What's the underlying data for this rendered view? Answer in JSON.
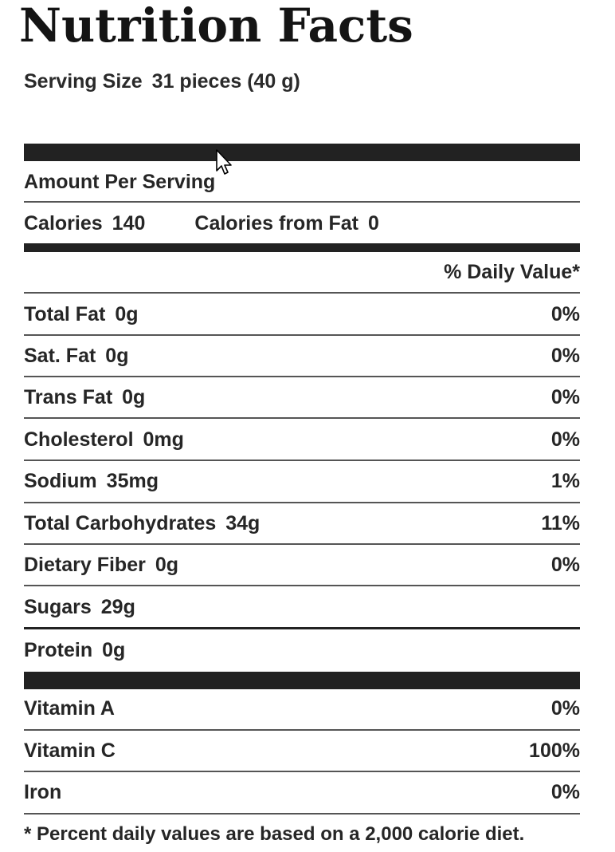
{
  "title": "Nutrition Facts",
  "serving": {
    "label": "Serving Size",
    "value": "31 pieces (40 g)"
  },
  "amount_per_serving": "Amount Per Serving",
  "calories": {
    "label": "Calories",
    "value": "140",
    "fat_label": "Calories from Fat",
    "fat_value": "0"
  },
  "daily_value_header": "% Daily Value*",
  "nutrients": [
    {
      "name": "Total Fat",
      "amount": "0g",
      "dv": "0%"
    },
    {
      "name": "Sat. Fat",
      "amount": "0g",
      "dv": "0%"
    },
    {
      "name": "Trans Fat",
      "amount": "0g",
      "dv": "0%"
    },
    {
      "name": "Cholesterol",
      "amount": "0mg",
      "dv": "0%"
    },
    {
      "name": "Sodium",
      "amount": "35mg",
      "dv": "1%"
    },
    {
      "name": "Total Carbohydrates",
      "amount": "34g",
      "dv": "11%"
    },
    {
      "name": "Dietary Fiber",
      "amount": "0g",
      "dv": "0%"
    },
    {
      "name": "Sugars",
      "amount": "29g",
      "dv": ""
    },
    {
      "name": "Protein",
      "amount": "0g",
      "dv": ""
    }
  ],
  "vitamins": [
    {
      "name": "Vitamin A",
      "dv": "0%"
    },
    {
      "name": "Vitamin C",
      "dv": "100%"
    },
    {
      "name": "Iron",
      "dv": "0%"
    }
  ],
  "footnote": "* Percent daily values are based on a 2,000 calorie diet.",
  "icons": {
    "cursor": "mouse-pointer-icon"
  },
  "colors": {
    "text": "#262626",
    "bars": "#222222",
    "background": "#ffffff"
  }
}
